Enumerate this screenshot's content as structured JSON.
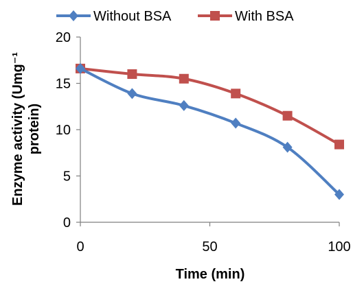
{
  "chart_data": {
    "type": "line",
    "xlabel": "Time (min)",
    "ylabel_line1": "Enzyme activity (Umg⁻¹",
    "ylabel_line2": "protein)",
    "xlim": [
      0,
      100
    ],
    "ylim": [
      0,
      20
    ],
    "xticks": [
      0,
      50,
      100
    ],
    "yticks": [
      0,
      5,
      10,
      15,
      20
    ],
    "grid": false,
    "legend_position": "top",
    "series": [
      {
        "name": "Without BSA",
        "color": "#4F7FC1",
        "marker": "diamond",
        "x": [
          0,
          20,
          40,
          60,
          80,
          100
        ],
        "y": [
          16.6,
          13.9,
          12.6,
          10.7,
          8.1,
          3.0
        ]
      },
      {
        "name": "With BSA",
        "color": "#C0504D",
        "marker": "square",
        "x": [
          0,
          20,
          40,
          60,
          80,
          100
        ],
        "y": [
          16.6,
          16.0,
          15.5,
          13.9,
          11.5,
          8.4
        ]
      }
    ]
  }
}
